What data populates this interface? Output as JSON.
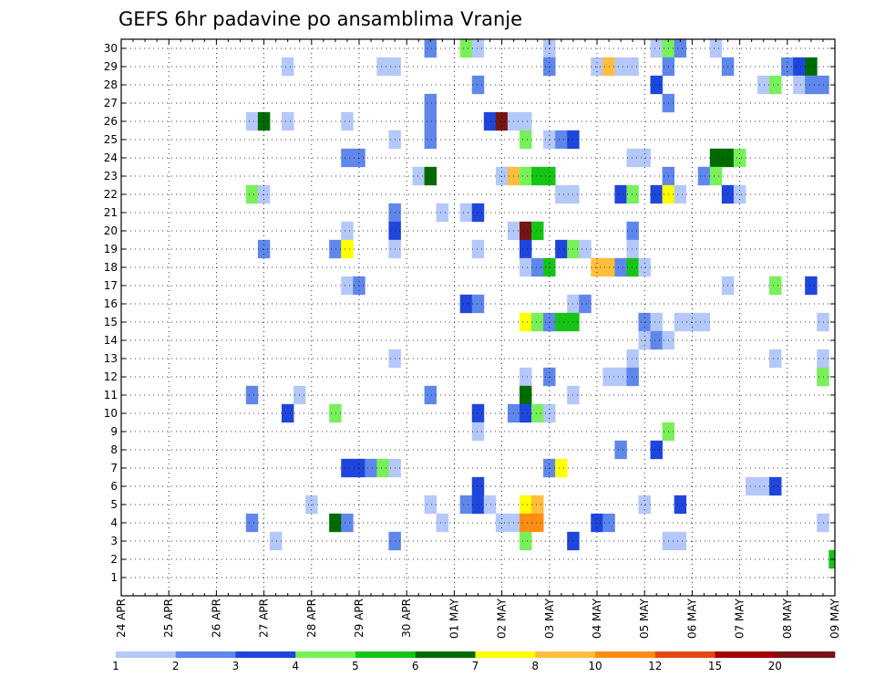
{
  "chart_data": {
    "type": "heatmap",
    "title": "GEFS 6hr padavine po ansamblima Vranje",
    "y_categories": [
      1,
      2,
      3,
      4,
      5,
      6,
      7,
      8,
      9,
      10,
      11,
      12,
      13,
      14,
      15,
      16,
      17,
      18,
      19,
      20,
      21,
      22,
      23,
      24,
      25,
      26,
      27,
      28,
      29,
      30
    ],
    "x_tick_labels": [
      "24 APR",
      "25 APR",
      "26 APR",
      "27 APR",
      "28 APR",
      "29 APR",
      "30 APR",
      "01 MAY",
      "02 MAY",
      "03 MAY",
      "04 MAY",
      "05 MAY",
      "06 MAY",
      "07 MAY",
      "08 MAY",
      "09 MAY"
    ],
    "x_range_steps": [
      0,
      60
    ],
    "steps_per_day": 4,
    "grid": true,
    "legend_placement": "bottom",
    "color_levels": [
      1,
      2,
      3,
      4,
      5,
      6,
      7,
      8,
      10,
      12,
      15,
      20
    ],
    "colors": [
      "#b4c8fa",
      "#5f87eb",
      "#1f46dc",
      "#78f05a",
      "#16c416",
      "#006b00",
      "#ffff00",
      "#ffbe3c",
      "#ff8c14",
      "#e64614",
      "#a00000",
      "#781414"
    ],
    "cells": [
      {
        "member": 30,
        "step": 26,
        "bin": 1
      },
      {
        "member": 30,
        "step": 29,
        "bin": 3
      },
      {
        "member": 30,
        "step": 30,
        "bin": 0
      },
      {
        "member": 30,
        "step": 36,
        "bin": 0
      },
      {
        "member": 30,
        "step": 45,
        "bin": 0
      },
      {
        "member": 30,
        "step": 46,
        "bin": 3
      },
      {
        "member": 30,
        "step": 47,
        "bin": 1
      },
      {
        "member": 30,
        "step": 50,
        "bin": 0
      },
      {
        "member": 29,
        "step": 14,
        "bin": 0
      },
      {
        "member": 29,
        "step": 22,
        "bin": 0
      },
      {
        "member": 29,
        "step": 23,
        "bin": 0
      },
      {
        "member": 29,
        "step": 36,
        "bin": 1
      },
      {
        "member": 29,
        "step": 40,
        "bin": 0
      },
      {
        "member": 29,
        "step": 41,
        "bin": 7
      },
      {
        "member": 29,
        "step": 42,
        "bin": 0
      },
      {
        "member": 29,
        "step": 43,
        "bin": 0
      },
      {
        "member": 29,
        "step": 46,
        "bin": 1
      },
      {
        "member": 29,
        "step": 51,
        "bin": 1
      },
      {
        "member": 29,
        "step": 56,
        "bin": 1
      },
      {
        "member": 29,
        "step": 57,
        "bin": 2
      },
      {
        "member": 29,
        "step": 58,
        "bin": 5
      },
      {
        "member": 28,
        "step": 30,
        "bin": 1
      },
      {
        "member": 28,
        "step": 45,
        "bin": 2
      },
      {
        "member": 28,
        "step": 54,
        "bin": 0
      },
      {
        "member": 28,
        "step": 55,
        "bin": 3
      },
      {
        "member": 28,
        "step": 57,
        "bin": 0
      },
      {
        "member": 28,
        "step": 58,
        "bin": 1
      },
      {
        "member": 28,
        "step": 59,
        "bin": 1
      },
      {
        "member": 27,
        "step": 26,
        "bin": 1
      },
      {
        "member": 27,
        "step": 46,
        "bin": 1
      },
      {
        "member": 26,
        "step": 11,
        "bin": 0
      },
      {
        "member": 26,
        "step": 12,
        "bin": 5
      },
      {
        "member": 26,
        "step": 14,
        "bin": 0
      },
      {
        "member": 26,
        "step": 19,
        "bin": 0
      },
      {
        "member": 26,
        "step": 26,
        "bin": 1
      },
      {
        "member": 26,
        "step": 31,
        "bin": 2
      },
      {
        "member": 26,
        "step": 32,
        "bin": 11
      },
      {
        "member": 26,
        "step": 33,
        "bin": 0
      },
      {
        "member": 26,
        "step": 34,
        "bin": 0
      },
      {
        "member": 25,
        "step": 23,
        "bin": 0
      },
      {
        "member": 25,
        "step": 26,
        "bin": 1
      },
      {
        "member": 25,
        "step": 34,
        "bin": 3
      },
      {
        "member": 25,
        "step": 36,
        "bin": 0
      },
      {
        "member": 25,
        "step": 37,
        "bin": 1
      },
      {
        "member": 25,
        "step": 38,
        "bin": 2
      },
      {
        "member": 24,
        "step": 19,
        "bin": 1
      },
      {
        "member": 24,
        "step": 20,
        "bin": 1
      },
      {
        "member": 24,
        "step": 43,
        "bin": 0
      },
      {
        "member": 24,
        "step": 44,
        "bin": 0
      },
      {
        "member": 24,
        "step": 50,
        "bin": 5
      },
      {
        "member": 24,
        "step": 51,
        "bin": 5
      },
      {
        "member": 24,
        "step": 52,
        "bin": 3
      },
      {
        "member": 23,
        "step": 25,
        "bin": 0
      },
      {
        "member": 23,
        "step": 26,
        "bin": 5
      },
      {
        "member": 23,
        "step": 32,
        "bin": 0
      },
      {
        "member": 23,
        "step": 33,
        "bin": 7
      },
      {
        "member": 23,
        "step": 34,
        "bin": 3
      },
      {
        "member": 23,
        "step": 35,
        "bin": 4
      },
      {
        "member": 23,
        "step": 36,
        "bin": 4
      },
      {
        "member": 23,
        "step": 46,
        "bin": 1
      },
      {
        "member": 23,
        "step": 49,
        "bin": 1
      },
      {
        "member": 23,
        "step": 50,
        "bin": 3
      },
      {
        "member": 22,
        "step": 11,
        "bin": 3
      },
      {
        "member": 22,
        "step": 12,
        "bin": 0
      },
      {
        "member": 22,
        "step": 37,
        "bin": 0
      },
      {
        "member": 22,
        "step": 38,
        "bin": 0
      },
      {
        "member": 22,
        "step": 42,
        "bin": 2
      },
      {
        "member": 22,
        "step": 43,
        "bin": 3
      },
      {
        "member": 22,
        "step": 45,
        "bin": 2
      },
      {
        "member": 22,
        "step": 46,
        "bin": 6
      },
      {
        "member": 22,
        "step": 47,
        "bin": 0
      },
      {
        "member": 22,
        "step": 51,
        "bin": 2
      },
      {
        "member": 22,
        "step": 52,
        "bin": 0
      },
      {
        "member": 21,
        "step": 23,
        "bin": 1
      },
      {
        "member": 21,
        "step": 27,
        "bin": 0
      },
      {
        "member": 21,
        "step": 29,
        "bin": 0
      },
      {
        "member": 21,
        "step": 30,
        "bin": 2
      },
      {
        "member": 20,
        "step": 19,
        "bin": 0
      },
      {
        "member": 20,
        "step": 23,
        "bin": 2
      },
      {
        "member": 20,
        "step": 33,
        "bin": 0
      },
      {
        "member": 20,
        "step": 34,
        "bin": 11
      },
      {
        "member": 20,
        "step": 35,
        "bin": 4
      },
      {
        "member": 20,
        "step": 43,
        "bin": 1
      },
      {
        "member": 19,
        "step": 12,
        "bin": 1
      },
      {
        "member": 19,
        "step": 18,
        "bin": 1
      },
      {
        "member": 19,
        "step": 19,
        "bin": 6
      },
      {
        "member": 19,
        "step": 23,
        "bin": 0
      },
      {
        "member": 19,
        "step": 30,
        "bin": 0
      },
      {
        "member": 19,
        "step": 34,
        "bin": 2
      },
      {
        "member": 19,
        "step": 37,
        "bin": 2
      },
      {
        "member": 19,
        "step": 38,
        "bin": 3
      },
      {
        "member": 19,
        "step": 39,
        "bin": 0
      },
      {
        "member": 19,
        "step": 43,
        "bin": 0
      },
      {
        "member": 18,
        "step": 34,
        "bin": 0
      },
      {
        "member": 18,
        "step": 35,
        "bin": 1
      },
      {
        "member": 18,
        "step": 36,
        "bin": 4
      },
      {
        "member": 18,
        "step": 40,
        "bin": 7
      },
      {
        "member": 18,
        "step": 41,
        "bin": 7
      },
      {
        "member": 18,
        "step": 42,
        "bin": 1
      },
      {
        "member": 18,
        "step": 43,
        "bin": 4
      },
      {
        "member": 18,
        "step": 44,
        "bin": 0
      },
      {
        "member": 17,
        "step": 19,
        "bin": 0
      },
      {
        "member": 17,
        "step": 20,
        "bin": 1
      },
      {
        "member": 17,
        "step": 51,
        "bin": 0
      },
      {
        "member": 17,
        "step": 55,
        "bin": 3
      },
      {
        "member": 17,
        "step": 58,
        "bin": 2
      },
      {
        "member": 16,
        "step": 29,
        "bin": 2
      },
      {
        "member": 16,
        "step": 30,
        "bin": 1
      },
      {
        "member": 16,
        "step": 38,
        "bin": 0
      },
      {
        "member": 16,
        "step": 39,
        "bin": 1
      },
      {
        "member": 15,
        "step": 34,
        "bin": 6
      },
      {
        "member": 15,
        "step": 35,
        "bin": 3
      },
      {
        "member": 15,
        "step": 36,
        "bin": 1
      },
      {
        "member": 15,
        "step": 37,
        "bin": 4
      },
      {
        "member": 15,
        "step": 38,
        "bin": 4
      },
      {
        "member": 15,
        "step": 44,
        "bin": 1
      },
      {
        "member": 15,
        "step": 45,
        "bin": 0
      },
      {
        "member": 15,
        "step": 47,
        "bin": 0
      },
      {
        "member": 15,
        "step": 48,
        "bin": 0
      },
      {
        "member": 15,
        "step": 49,
        "bin": 0
      },
      {
        "member": 15,
        "step": 59,
        "bin": 0
      },
      {
        "member": 14,
        "step": 44,
        "bin": 0
      },
      {
        "member": 14,
        "step": 45,
        "bin": 1
      },
      {
        "member": 14,
        "step": 46,
        "bin": 0
      },
      {
        "member": 13,
        "step": 23,
        "bin": 0
      },
      {
        "member": 13,
        "step": 43,
        "bin": 0
      },
      {
        "member": 13,
        "step": 55,
        "bin": 0
      },
      {
        "member": 13,
        "step": 59,
        "bin": 0
      },
      {
        "member": 12,
        "step": 34,
        "bin": 0
      },
      {
        "member": 12,
        "step": 36,
        "bin": 1
      },
      {
        "member": 12,
        "step": 41,
        "bin": 0
      },
      {
        "member": 12,
        "step": 42,
        "bin": 0
      },
      {
        "member": 12,
        "step": 43,
        "bin": 1
      },
      {
        "member": 12,
        "step": 59,
        "bin": 3
      },
      {
        "member": 11,
        "step": 11,
        "bin": 1
      },
      {
        "member": 11,
        "step": 15,
        "bin": 0
      },
      {
        "member": 11,
        "step": 26,
        "bin": 1
      },
      {
        "member": 11,
        "step": 34,
        "bin": 5
      },
      {
        "member": 11,
        "step": 38,
        "bin": 0
      },
      {
        "member": 10,
        "step": 14,
        "bin": 2
      },
      {
        "member": 10,
        "step": 18,
        "bin": 3
      },
      {
        "member": 10,
        "step": 30,
        "bin": 2
      },
      {
        "member": 10,
        "step": 33,
        "bin": 1
      },
      {
        "member": 10,
        "step": 34,
        "bin": 2
      },
      {
        "member": 10,
        "step": 35,
        "bin": 3
      },
      {
        "member": 10,
        "step": 36,
        "bin": 0
      },
      {
        "member": 9,
        "step": 30,
        "bin": 0
      },
      {
        "member": 9,
        "step": 46,
        "bin": 3
      },
      {
        "member": 8,
        "step": 42,
        "bin": 1
      },
      {
        "member": 8,
        "step": 45,
        "bin": 2
      },
      {
        "member": 7,
        "step": 19,
        "bin": 2
      },
      {
        "member": 7,
        "step": 20,
        "bin": 2
      },
      {
        "member": 7,
        "step": 21,
        "bin": 1
      },
      {
        "member": 7,
        "step": 22,
        "bin": 3
      },
      {
        "member": 7,
        "step": 23,
        "bin": 0
      },
      {
        "member": 7,
        "step": 36,
        "bin": 1
      },
      {
        "member": 7,
        "step": 37,
        "bin": 6
      },
      {
        "member": 6,
        "step": 30,
        "bin": 2
      },
      {
        "member": 6,
        "step": 53,
        "bin": 0
      },
      {
        "member": 6,
        "step": 54,
        "bin": 0
      },
      {
        "member": 6,
        "step": 55,
        "bin": 2
      },
      {
        "member": 5,
        "step": 16,
        "bin": 0
      },
      {
        "member": 5,
        "step": 26,
        "bin": 0
      },
      {
        "member": 5,
        "step": 29,
        "bin": 1
      },
      {
        "member": 5,
        "step": 30,
        "bin": 2
      },
      {
        "member": 5,
        "step": 31,
        "bin": 0
      },
      {
        "member": 5,
        "step": 34,
        "bin": 6
      },
      {
        "member": 5,
        "step": 35,
        "bin": 7
      },
      {
        "member": 5,
        "step": 44,
        "bin": 0
      },
      {
        "member": 5,
        "step": 47,
        "bin": 2
      },
      {
        "member": 4,
        "step": 11,
        "bin": 1
      },
      {
        "member": 4,
        "step": 18,
        "bin": 5
      },
      {
        "member": 4,
        "step": 19,
        "bin": 1
      },
      {
        "member": 4,
        "step": 27,
        "bin": 0
      },
      {
        "member": 4,
        "step": 32,
        "bin": 0
      },
      {
        "member": 4,
        "step": 33,
        "bin": 0
      },
      {
        "member": 4,
        "step": 34,
        "bin": 8
      },
      {
        "member": 4,
        "step": 35,
        "bin": 8
      },
      {
        "member": 4,
        "step": 40,
        "bin": 2
      },
      {
        "member": 4,
        "step": 41,
        "bin": 1
      },
      {
        "member": 4,
        "step": 59,
        "bin": 0
      },
      {
        "member": 3,
        "step": 13,
        "bin": 0
      },
      {
        "member": 3,
        "step": 23,
        "bin": 1
      },
      {
        "member": 3,
        "step": 34,
        "bin": 3
      },
      {
        "member": 3,
        "step": 38,
        "bin": 2
      },
      {
        "member": 3,
        "step": 46,
        "bin": 0
      },
      {
        "member": 3,
        "step": 47,
        "bin": 0
      },
      {
        "member": 2,
        "step": 60,
        "bin": 4
      }
    ]
  }
}
